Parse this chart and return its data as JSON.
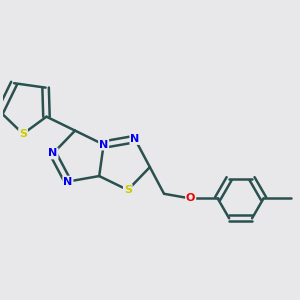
{
  "background_color": "#e8e8ea",
  "bond_color": "#2a5050",
  "nitrogen_color": "#0000ee",
  "sulfur_color": "#cccc00",
  "oxygen_color": "#ee0000",
  "bond_width": 1.8,
  "figsize": [
    3.0,
    3.0
  ],
  "dpi": 100,
  "xlim": [
    0.0,
    1.0
  ],
  "ylim": [
    0.05,
    0.95
  ]
}
